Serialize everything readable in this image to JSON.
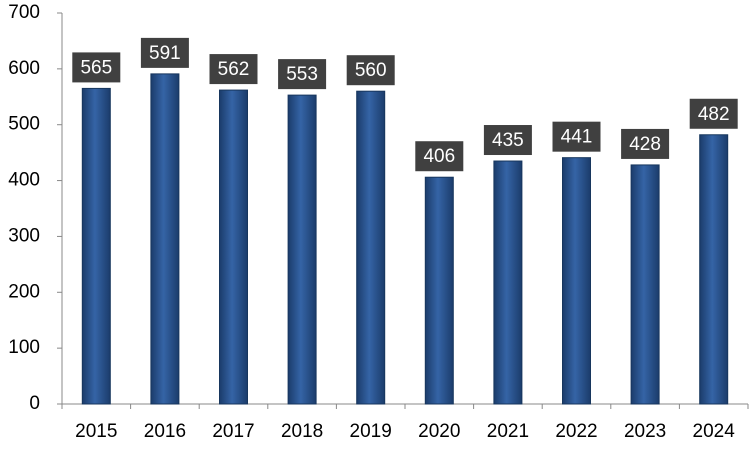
{
  "chart_data": {
    "type": "bar",
    "categories": [
      "2015",
      "2016",
      "2017",
      "2018",
      "2019",
      "2020",
      "2021",
      "2022",
      "2023",
      "2024"
    ],
    "values": [
      565,
      591,
      562,
      553,
      560,
      406,
      435,
      441,
      428,
      482
    ],
    "color": "#2b5591",
    "label_color": "#404040",
    "ylim": [
      0,
      700
    ],
    "yticks": [
      0,
      100,
      200,
      300,
      400,
      500,
      600,
      700
    ],
    "grid": false
  }
}
